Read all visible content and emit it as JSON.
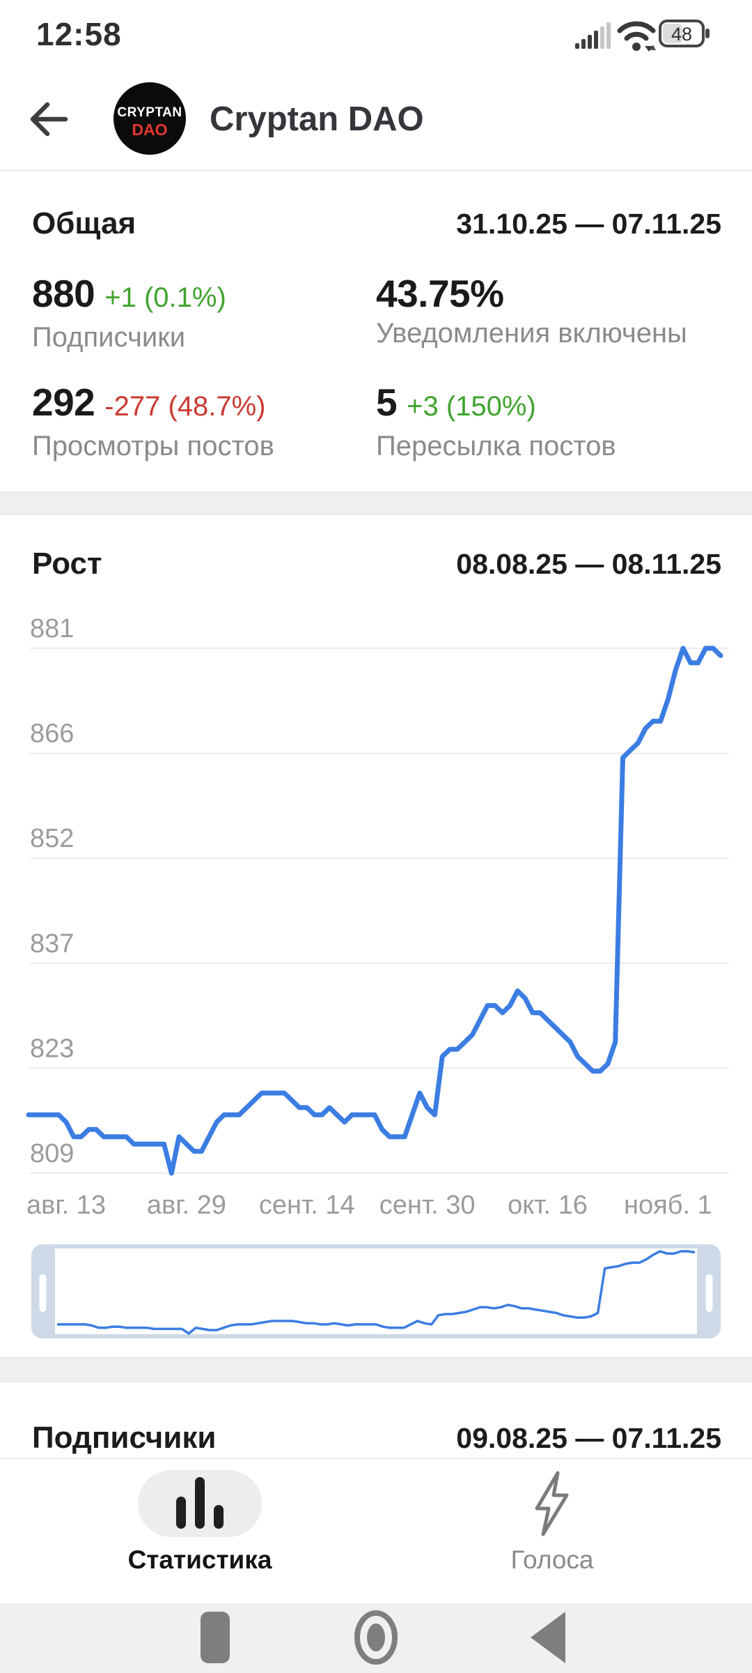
{
  "status_bar": {
    "time": "12:58",
    "battery_percent": "48",
    "icons": [
      "signal-strength-icon",
      "wifi-icon",
      "battery-icon"
    ]
  },
  "header": {
    "title": "Cryptan DAO",
    "logo_top": "CRYPTAN",
    "logo_bottom": "DAO",
    "back_icon": "arrow-left-icon"
  },
  "overview": {
    "title": "Общая",
    "date_range": "31.10.25 — 07.11.25",
    "stats": [
      {
        "value": "880",
        "delta": "+1 (0.1%)",
        "tone": "pos",
        "label": "Подписчики"
      },
      {
        "value": "43.75%",
        "delta": "",
        "tone": "",
        "label": "Уведомления включены"
      },
      {
        "value": "292",
        "delta": "-277 (48.7%)",
        "tone": "neg",
        "label": "Просмотры постов"
      },
      {
        "value": "5",
        "delta": "+3 (150%)",
        "tone": "pos",
        "label": "Пересылка постов"
      }
    ]
  },
  "growth": {
    "title": "Рост",
    "date_range": "08.08.25 — 08.11.25"
  },
  "subscribers": {
    "title": "Подписчики",
    "date_range": "09.08.25 — 07.11.25"
  },
  "tab_bar": {
    "tabs": [
      {
        "label": "Статистика",
        "icon": "bar-chart-icon",
        "active": true
      },
      {
        "label": "Голоса",
        "icon": "lightning-icon",
        "active": false
      }
    ]
  },
  "android_nav": {
    "icons": [
      "recents-square-icon",
      "home-circle-icon",
      "back-triangle-icon"
    ]
  },
  "colors": {
    "accent_blue": "#3b7de2",
    "positive_green": "#3fa32e",
    "negative_red": "#c93a31",
    "minimap_frame": "#cdd9e6",
    "logo_red": "#e2382f"
  },
  "chart_data": {
    "type": "line",
    "title": "Рост",
    "ylabel": "Подписчики",
    "xlabel": "",
    "ylim": [
      809,
      881
    ],
    "grid": true,
    "legend_position": "none",
    "y_ticks": [
      881,
      866,
      852,
      837,
      823,
      809
    ],
    "x_ticks": [
      "авг. 13",
      "авг. 29",
      "сент. 14",
      "сент. 30",
      "окт. 16",
      "нояб. 1"
    ],
    "x_tick_days": [
      5,
      21,
      37,
      53,
      69,
      85
    ],
    "x_range_days": 92,
    "line_color": "#3b7de2",
    "series": [
      {
        "name": "Подписчики",
        "values": [
          817,
          817,
          817,
          817,
          817,
          816,
          814,
          814,
          815,
          815,
          814,
          814,
          814,
          814,
          813,
          813,
          813,
          813,
          813,
          809,
          814,
          813,
          812,
          812,
          814,
          816,
          817,
          817,
          817,
          818,
          819,
          820,
          820,
          820,
          820,
          819,
          818,
          818,
          817,
          817,
          818,
          817,
          816,
          817,
          817,
          817,
          817,
          815,
          814,
          814,
          814,
          817,
          820,
          818,
          817,
          825,
          826,
          826,
          827,
          828,
          830,
          832,
          832,
          831,
          832,
          834,
          833,
          831,
          831,
          830,
          829,
          828,
          827,
          825,
          824,
          823,
          823,
          824,
          827,
          866,
          867,
          868,
          870,
          871,
          871,
          874,
          878,
          881,
          879,
          879,
          881,
          881,
          880
        ]
      }
    ]
  }
}
